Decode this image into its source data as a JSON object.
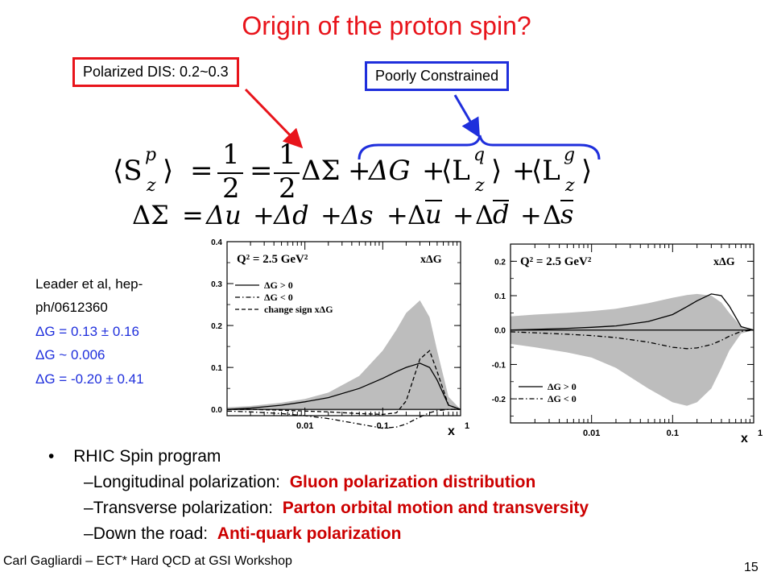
{
  "slide": {
    "title": "Origin of the proton spin?",
    "boxes": {
      "polarized_dis": "Polarized DIS:  0.2~0.3",
      "poorly_constrained": "Poorly Constrained"
    },
    "equations": {
      "eq1": {
        "lhs": "⟨S",
        "lhs_sup": "p",
        "lhs_sub": "z",
        "lhs_close": "⟩",
        "eq": "=",
        "half_num": "1",
        "half_den": "2",
        "delta_sigma": "ΔΣ",
        "plus1": "+",
        "delta_g": "ΔG",
        "plus2": "+",
        "lq_open": "⟨L",
        "lq_sup": "q",
        "lq_sub": "z",
        "lq_close": "⟩",
        "plus3": "+",
        "lg_open": "⟨L",
        "lg_sup": "g",
        "lg_sub": "z",
        "lg_close": "⟩"
      },
      "eq2": {
        "lhs": "ΔΣ",
        "eq": "=",
        "du": "Δu",
        "dd": "Δd",
        "ds": "Δs",
        "dubar_d": "Δ",
        "dubar_u": "u",
        "ddbar_d": "Δ",
        "ddbar_d2": "d",
        "dsbar_d": "Δ",
        "dsbar_s": "s",
        "plus": "+"
      }
    },
    "reference": {
      "line1": "Leader et al, hep-",
      "line2": "ph/0612360",
      "line3": "ΔG = 0.13 ± 0.16",
      "line4": "ΔG ~ 0.006",
      "line5": "ΔG = -0.20 ± 0.41"
    },
    "bullets": {
      "main": "RHIC Spin program",
      "sub": [
        {
          "dash": "–",
          "text": "Longitudinal polarization:  ",
          "highlight": "Gluon polarization distribution"
        },
        {
          "dash": "–",
          "text": "Transverse polarization:  ",
          "highlight": "Parton orbital motion and transversity"
        },
        {
          "dash": "–",
          "text": "Down the road:  ",
          "highlight": "Anti-quark polarization"
        }
      ]
    },
    "footer": "Carl Gagliardi – ECT* Hard QCD at GSI Workshop",
    "page_number": "15",
    "colors": {
      "red": "#e8141b",
      "blue": "#1f2fdc",
      "band": "#bdbdbd"
    }
  },
  "chart_data": [
    {
      "type": "line",
      "title": "Q² = 2.5 GeV²",
      "title_label": "xΔG",
      "xlabel": "x",
      "x_scale": "log",
      "xlim": [
        0.001,
        1
      ],
      "ylim": [
        -0.015,
        0.4
      ],
      "x_ticks": [
        "0.01",
        "0.1",
        "1"
      ],
      "y_ticks": [
        "0.0",
        "0.1",
        "0.2",
        "0.3",
        "0.4"
      ],
      "legend": [
        "ΔG > 0",
        "ΔG < 0",
        "change sign xΔG"
      ],
      "legend_position": "top-left",
      "x": [
        0.001,
        0.002,
        0.005,
        0.01,
        0.02,
        0.05,
        0.1,
        0.15,
        0.2,
        0.3,
        0.4,
        0.5,
        0.7,
        1.0
      ],
      "band_upper": [
        0.005,
        0.008,
        0.016,
        0.025,
        0.04,
        0.08,
        0.14,
        0.19,
        0.23,
        0.26,
        0.22,
        0.14,
        0.03,
        0.0
      ],
      "band_lower": [
        -0.002,
        -0.002,
        -0.002,
        -0.002,
        -0.003,
        -0.003,
        -0.003,
        -0.002,
        -0.002,
        -0.002,
        -0.002,
        -0.002,
        -0.001,
        0.0
      ],
      "series": [
        {
          "name": "ΔG > 0",
          "style": "solid",
          "values": [
            0.0,
            0.003,
            0.01,
            0.018,
            0.028,
            0.05,
            0.074,
            0.09,
            0.1,
            0.11,
            0.1,
            0.07,
            0.01,
            0.0
          ]
        },
        {
          "name": "ΔG < 0",
          "style": "dashdot",
          "values": [
            -0.004,
            -0.006,
            -0.01,
            -0.015,
            -0.022,
            -0.035,
            -0.045,
            -0.042,
            -0.035,
            -0.018,
            -0.008,
            -0.003,
            0.0,
            0.0
          ]
        },
        {
          "name": "change sign xΔG",
          "style": "dashed",
          "values": [
            0.0,
            0.0,
            -0.002,
            -0.004,
            -0.006,
            -0.01,
            -0.012,
            -0.008,
            0.02,
            0.12,
            0.14,
            0.09,
            0.01,
            0.0
          ]
        }
      ]
    },
    {
      "type": "line",
      "title": "Q² = 2.5 GeV²",
      "title_label": "xΔG",
      "xlabel": "x",
      "x_scale": "log",
      "xlim": [
        0.001,
        1
      ],
      "ylim": [
        -0.27,
        0.25
      ],
      "x_ticks": [
        "0.01",
        "0.1",
        "1"
      ],
      "y_ticks": [
        "0.2",
        "0.1",
        "0.0",
        "-0.1",
        "-0.2"
      ],
      "legend": [
        "ΔG > 0",
        "ΔG < 0"
      ],
      "legend_position": "bottom-left",
      "x": [
        0.001,
        0.002,
        0.005,
        0.01,
        0.02,
        0.05,
        0.1,
        0.15,
        0.2,
        0.3,
        0.4,
        0.5,
        0.7,
        1.0
      ],
      "band_upper": [
        0.04,
        0.045,
        0.05,
        0.055,
        0.062,
        0.078,
        0.094,
        0.102,
        0.105,
        0.1,
        0.08,
        0.05,
        0.01,
        0.0
      ],
      "band_lower": [
        -0.04,
        -0.05,
        -0.065,
        -0.08,
        -0.11,
        -0.17,
        -0.21,
        -0.22,
        -0.21,
        -0.17,
        -0.11,
        -0.06,
        -0.01,
        0.0
      ],
      "series": [
        {
          "name": "ΔG > 0",
          "style": "solid",
          "values": [
            0.0,
            0.002,
            0.005,
            0.008,
            0.012,
            0.025,
            0.045,
            0.068,
            0.085,
            0.105,
            0.1,
            0.07,
            0.01,
            0.0
          ]
        },
        {
          "name": "ΔG < 0",
          "style": "dashdot",
          "values": [
            -0.005,
            -0.008,
            -0.012,
            -0.016,
            -0.022,
            -0.035,
            -0.05,
            -0.054,
            -0.052,
            -0.042,
            -0.03,
            -0.018,
            -0.004,
            0.0
          ]
        }
      ]
    }
  ]
}
